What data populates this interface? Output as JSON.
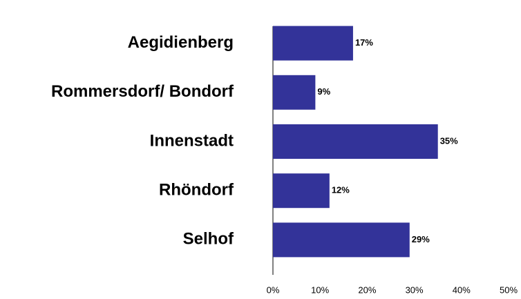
{
  "chart_data": {
    "type": "bar",
    "orientation": "horizontal",
    "categories": [
      "Aegidienberg",
      "Rommersdorf/ Bondorf",
      "Innenstadt",
      "Rhöndorf",
      "Selhof"
    ],
    "values": [
      17,
      9,
      35,
      12,
      29
    ],
    "value_labels": [
      "17%",
      "9%",
      "35%",
      "12%",
      "29%"
    ],
    "color": "#333399",
    "xlim": [
      0,
      50
    ],
    "xticks": [
      {
        "value": 0,
        "label": "0%"
      },
      {
        "value": 10,
        "label": "10%"
      },
      {
        "value": 20,
        "label": "20%"
      },
      {
        "value": 30,
        "label": "30%"
      },
      {
        "value": 40,
        "label": "40%"
      },
      {
        "value": 50,
        "label": "50%"
      }
    ],
    "grid": false
  }
}
